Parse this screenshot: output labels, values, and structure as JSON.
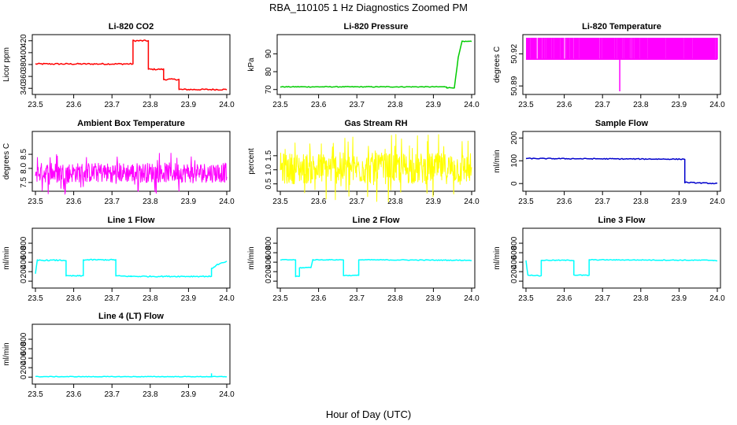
{
  "title": "RBA_110105  1 Hz Diagnostics Zoomed PM",
  "xlabel": "Hour of Day (UTC)",
  "chart_data": [
    {
      "type": "line",
      "title": "Li-820 CO2",
      "ylabel": "Licor ppm",
      "color": "#ff0000",
      "xlim": [
        23.5,
        24.0
      ],
      "xticks": [
        "23.5",
        "23.6",
        "23.7",
        "23.8",
        "23.9",
        "24.0"
      ],
      "ylim": [
        335,
        425
      ],
      "yticks": [
        "340",
        "360",
        "380",
        "400",
        "420"
      ],
      "steps": [
        [
          23.5,
          381
        ],
        [
          23.755,
          381
        ],
        [
          23.755,
          420
        ],
        [
          23.795,
          420
        ],
        [
          23.795,
          372
        ],
        [
          23.835,
          372
        ],
        [
          23.835,
          355
        ],
        [
          23.875,
          355
        ],
        [
          23.875,
          338
        ],
        [
          24.0,
          338
        ]
      ],
      "noise": 1.2
    },
    {
      "type": "line",
      "title": "Li-820 Pressure",
      "ylabel": "kPa",
      "color": "#00cc00",
      "xlim": [
        23.5,
        24.0
      ],
      "xticks": [
        "23.5",
        "23.6",
        "23.7",
        "23.8",
        "23.9",
        "24.0"
      ],
      "ylim": [
        69,
        99
      ],
      "yticks": [
        "70",
        "80",
        "90"
      ],
      "steps": [
        [
          23.5,
          71.5
        ],
        [
          23.935,
          71.5
        ],
        [
          23.935,
          71
        ],
        [
          23.955,
          71
        ],
        [
          23.965,
          88
        ],
        [
          23.975,
          97
        ],
        [
          24.0,
          97
        ]
      ],
      "noise": 0.2
    },
    {
      "type": "line",
      "title": "Li-820 Temperature",
      "ylabel": "degrees C",
      "color": "#ff00ff",
      "xlim": [
        23.5,
        24.0
      ],
      "xticks": [
        "23.5",
        "23.6",
        "23.7",
        "23.8",
        "23.9",
        "24.0"
      ],
      "ylim": [
        50.885,
        50.935
      ],
      "yticks": [
        "50.89",
        "50.92"
      ],
      "style": "toggle",
      "lo": 50.915,
      "hi": 50.935,
      "spike": [
        23.745,
        50.885
      ]
    },
    {
      "type": "line",
      "title": "Ambient Box Temperature",
      "ylabel": "degrees C",
      "color": "#ff00ff",
      "xlim": [
        23.5,
        24.0
      ],
      "xticks": [
        "23.5",
        "23.6",
        "23.7",
        "23.8",
        "23.9",
        "24.0"
      ],
      "ylim": [
        7.3,
        9.2
      ],
      "yticks": [
        "7.5",
        "8.0",
        "8.5"
      ],
      "style": "noise",
      "center": 7.85,
      "amp": 0.35
    },
    {
      "type": "line",
      "title": "Gas Stream RH",
      "ylabel": "percent",
      "color": "#ffff00",
      "xlim": [
        23.5,
        24.0
      ],
      "xticks": [
        "23.5",
        "23.6",
        "23.7",
        "23.8",
        "23.9",
        "24.0"
      ],
      "ylim": [
        0.35,
        2.25
      ],
      "yticks": [
        "0.5",
        "1.0",
        "1.5"
      ],
      "style": "noise",
      "center": 1.05,
      "amp": 0.55
    },
    {
      "type": "line",
      "title": "Sample Flow",
      "ylabel": "ml/min",
      "color": "#0000cc",
      "xlim": [
        23.5,
        24.0
      ],
      "xticks": [
        "23.5",
        "23.6",
        "23.7",
        "23.8",
        "23.9",
        "24.0"
      ],
      "ylim": [
        -20,
        215
      ],
      "yticks": [
        "0",
        "100",
        "200"
      ],
      "steps": [
        [
          23.5,
          110
        ],
        [
          23.915,
          107
        ],
        [
          23.915,
          5
        ],
        [
          24.0,
          0
        ]
      ],
      "noise": 2
    },
    {
      "type": "line",
      "title": "Line 1 Flow",
      "ylabel": "ml/min",
      "color": "#00ffff",
      "xlim": [
        23.5,
        24.0
      ],
      "xticks": [
        "23.5",
        "23.6",
        "23.7",
        "23.8",
        "23.9",
        "24.0"
      ],
      "ylim": [
        -80,
        1050
      ],
      "yticks": [
        "0",
        "200",
        "400",
        "600",
        "800"
      ],
      "steps": [
        [
          23.5,
          150
        ],
        [
          23.505,
          440
        ],
        [
          23.58,
          440
        ],
        [
          23.58,
          110
        ],
        [
          23.625,
          110
        ],
        [
          23.625,
          450
        ],
        [
          23.71,
          450
        ],
        [
          23.71,
          110
        ],
        [
          23.75,
          100
        ],
        [
          23.96,
          100
        ],
        [
          23.96,
          260
        ],
        [
          23.975,
          350
        ],
        [
          24.0,
          410
        ]
      ],
      "noise": 12
    },
    {
      "type": "line",
      "title": "Line 2 Flow",
      "ylabel": "ml/min",
      "color": "#00ffff",
      "xlim": [
        23.5,
        24.0
      ],
      "xticks": [
        "23.5",
        "23.6",
        "23.7",
        "23.8",
        "23.9",
        "24.0"
      ],
      "ylim": [
        -80,
        1050
      ],
      "yticks": [
        "0",
        "200",
        "400",
        "600",
        "800"
      ],
      "steps": [
        [
          23.5,
          450
        ],
        [
          23.54,
          450
        ],
        [
          23.54,
          100
        ],
        [
          23.55,
          100
        ],
        [
          23.55,
          280
        ],
        [
          23.58,
          290
        ],
        [
          23.585,
          450
        ],
        [
          23.665,
          450
        ],
        [
          23.665,
          120
        ],
        [
          23.705,
          120
        ],
        [
          23.705,
          450
        ],
        [
          24.0,
          440
        ]
      ],
      "noise": 8
    },
    {
      "type": "line",
      "title": "Line 3 Flow",
      "ylabel": "ml/min",
      "color": "#00ffff",
      "xlim": [
        23.5,
        24.0
      ],
      "xticks": [
        "23.5",
        "23.6",
        "23.7",
        "23.8",
        "23.9",
        "24.0"
      ],
      "ylim": [
        -80,
        1050
      ],
      "yticks": [
        "0",
        "200",
        "400",
        "600",
        "800"
      ],
      "steps": [
        [
          23.5,
          430
        ],
        [
          23.505,
          130
        ],
        [
          23.54,
          110
        ],
        [
          23.54,
          440
        ],
        [
          23.625,
          440
        ],
        [
          23.625,
          130
        ],
        [
          23.665,
          120
        ],
        [
          23.665,
          450
        ],
        [
          23.99,
          440
        ],
        [
          24.0,
          430
        ]
      ],
      "noise": 8
    },
    {
      "type": "line",
      "title": "Line 4 (LT) Flow",
      "ylabel": "ml/min",
      "color": "#00ffff",
      "xlim": [
        23.5,
        24.0
      ],
      "xticks": [
        "23.5",
        "23.6",
        "23.7",
        "23.8",
        "23.9",
        "24.0"
      ],
      "ylim": [
        -80,
        1050
      ],
      "yticks": [
        "0",
        "200",
        "400",
        "600",
        "800"
      ],
      "steps": [
        [
          23.5,
          10
        ],
        [
          24.0,
          10
        ]
      ],
      "noise": 6,
      "spike": [
        23.96,
        80
      ]
    }
  ]
}
